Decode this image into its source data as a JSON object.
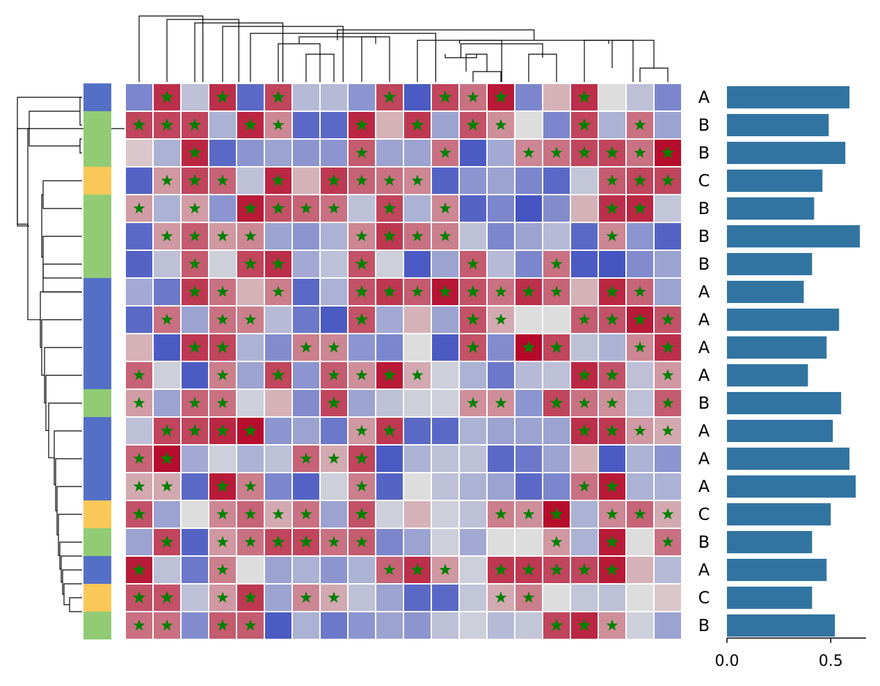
{
  "chart_data": {
    "type": "heatmap",
    "title": "",
    "xlabel": "",
    "ylabel": "",
    "n_rows": 20,
    "n_cols": 20,
    "colormap": [
      "#3b4cc0",
      "#dddddd",
      "#b40426"
    ],
    "value_range": [
      0,
      1
    ],
    "star_threshold": 0.6,
    "star_color": "#008000",
    "values": [
      [
        0.2,
        0.9,
        0.4,
        0.9,
        0.1,
        0.85,
        0.38,
        0.38,
        0.25,
        0.85,
        0.05,
        0.85,
        0.75,
        0.95,
        0.2,
        0.6,
        0.9,
        0.5,
        0.4,
        0.2
      ],
      [
        0.85,
        0.85,
        0.85,
        0.35,
        0.92,
        0.7,
        0.1,
        0.1,
        0.92,
        0.6,
        0.88,
        0.3,
        0.82,
        0.68,
        0.5,
        0.2,
        0.85,
        0.35,
        0.75,
        0.3
      ],
      [
        0.55,
        0.35,
        0.92,
        0.1,
        0.25,
        0.3,
        0.25,
        0.25,
        0.8,
        0.3,
        0.3,
        0.75,
        0.05,
        0.32,
        0.7,
        0.75,
        0.85,
        0.85,
        0.75,
        0.98
      ],
      [
        0.08,
        0.66,
        0.85,
        0.78,
        0.4,
        0.92,
        0.6,
        0.88,
        0.78,
        0.75,
        0.7,
        0.08,
        0.25,
        0.3,
        0.2,
        0.1,
        0.42,
        0.8,
        0.85,
        0.85
      ],
      [
        0.65,
        0.35,
        0.65,
        0.25,
        0.95,
        0.82,
        0.78,
        0.75,
        0.4,
        0.85,
        0.35,
        0.7,
        0.08,
        0.2,
        0.03,
        0.22,
        0.6,
        0.9,
        0.92,
        0.42
      ],
      [
        0.1,
        0.66,
        0.8,
        0.66,
        0.7,
        0.3,
        0.25,
        0.35,
        0.7,
        0.88,
        0.75,
        0.72,
        0.4,
        0.2,
        0.3,
        0.38,
        0.1,
        0.7,
        0.25,
        0.08
      ],
      [
        0.08,
        0.4,
        0.8,
        0.45,
        0.85,
        0.9,
        0.32,
        0.4,
        0.82,
        0.45,
        0.05,
        0.3,
        0.8,
        0.38,
        0.2,
        0.75,
        0.05,
        0.03,
        0.22,
        0.3
      ],
      [
        0.32,
        0.15,
        0.88,
        0.75,
        0.6,
        0.72,
        0.1,
        0.35,
        0.82,
        0.88,
        0.8,
        0.96,
        0.82,
        0.75,
        0.9,
        0.78,
        0.6,
        0.92,
        0.78,
        0.3
      ],
      [
        0.1,
        0.75,
        0.3,
        0.75,
        0.72,
        0.38,
        0.15,
        0.05,
        0.82,
        0.32,
        0.6,
        0.3,
        0.82,
        0.62,
        0.5,
        0.5,
        0.8,
        0.82,
        0.95,
        0.82
      ],
      [
        0.6,
        0.05,
        0.88,
        0.85,
        0.35,
        0.22,
        0.72,
        0.7,
        0.25,
        0.2,
        0.5,
        0.05,
        0.82,
        0.22,
        0.99,
        0.85,
        0.4,
        0.35,
        0.7,
        0.9
      ],
      [
        0.78,
        0.45,
        0.05,
        0.72,
        0.3,
        0.85,
        0.25,
        0.8,
        0.68,
        0.95,
        0.62,
        0.45,
        0.35,
        0.15,
        0.38,
        0.4,
        0.92,
        0.82,
        0.4,
        0.66
      ],
      [
        0.65,
        0.3,
        0.78,
        0.75,
        0.45,
        0.6,
        0.22,
        0.85,
        0.3,
        0.4,
        0.45,
        0.45,
        0.68,
        0.68,
        0.25,
        0.85,
        0.75,
        0.68,
        0.4,
        0.8
      ],
      [
        0.4,
        0.85,
        0.85,
        0.92,
        0.98,
        0.25,
        0.3,
        0.15,
        0.66,
        0.88,
        0.1,
        0.1,
        0.35,
        0.3,
        0.3,
        0.3,
        0.9,
        0.88,
        0.66,
        0.62
      ],
      [
        0.78,
        0.98,
        0.32,
        0.45,
        0.35,
        0.4,
        0.78,
        0.62,
        0.85,
        0.05,
        0.35,
        0.4,
        0.4,
        0.1,
        0.15,
        0.3,
        0.6,
        0.05,
        0.35,
        0.25
      ],
      [
        0.62,
        0.62,
        0.1,
        0.95,
        0.72,
        0.2,
        0.08,
        0.45,
        0.72,
        0.08,
        0.5,
        0.4,
        0.35,
        0.3,
        0.1,
        0.2,
        0.75,
        0.95,
        0.35,
        0.35
      ],
      [
        0.82,
        0.3,
        0.5,
        0.7,
        0.78,
        0.62,
        0.75,
        0.3,
        0.82,
        0.45,
        0.6,
        0.45,
        0.4,
        0.72,
        0.68,
        0.98,
        0.35,
        0.7,
        0.78,
        0.62
      ],
      [
        0.3,
        0.85,
        0.08,
        0.66,
        0.75,
        0.85,
        0.85,
        0.75,
        0.8,
        0.2,
        0.3,
        0.45,
        0.32,
        0.5,
        0.5,
        0.66,
        0.35,
        0.95,
        0.5,
        0.75
      ],
      [
        0.95,
        0.4,
        0.15,
        0.72,
        0.5,
        0.3,
        0.35,
        0.25,
        0.35,
        0.78,
        0.9,
        0.66,
        0.45,
        0.88,
        0.88,
        0.85,
        0.85,
        0.95,
        0.6,
        0.38
      ],
      [
        0.82,
        0.82,
        0.4,
        0.66,
        0.88,
        0.3,
        0.7,
        0.62,
        0.4,
        0.3,
        0.1,
        0.1,
        0.42,
        0.62,
        0.72,
        0.5,
        0.42,
        0.4,
        0.5,
        0.55
      ],
      [
        0.75,
        0.75,
        0.22,
        0.8,
        0.8,
        0.05,
        0.35,
        0.15,
        0.25,
        0.3,
        0.25,
        0.4,
        0.45,
        0.38,
        0.42,
        0.85,
        0.92,
        0.68,
        0.45,
        0.3
      ]
    ],
    "row_labels": [
      "A",
      "B",
      "B",
      "C",
      "B",
      "B",
      "B",
      "A",
      "A",
      "A",
      "A",
      "B",
      "A",
      "A",
      "A",
      "C",
      "B",
      "A",
      "C",
      "B"
    ],
    "group_colors": {
      "A": "#5470c6",
      "B": "#91cc75",
      "C": "#fac858"
    },
    "bar_values": [
      0.59,
      0.49,
      0.57,
      0.46,
      0.42,
      0.64,
      0.41,
      0.37,
      0.54,
      0.48,
      0.39,
      0.55,
      0.51,
      0.59,
      0.62,
      0.5,
      0.41,
      0.48,
      0.41,
      0.52
    ],
    "bar_color": "#3274a1",
    "bar_xlim": [
      0,
      0.67
    ],
    "bar_xticks": [
      0.0,
      0.5
    ],
    "bar_xtick_labels": [
      "0.0",
      "0.5"
    ]
  }
}
